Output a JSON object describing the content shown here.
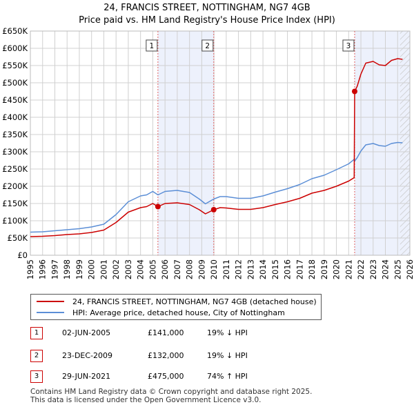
{
  "chart_data": {
    "type": "line",
    "title": "24, FRANCIS STREET, NOTTINGHAM, NG7 4GB",
    "subtitle": "Price paid vs. HM Land Registry's House Price Index (HPI)",
    "xlim": [
      1995,
      2026
    ],
    "ylim": [
      0,
      650000
    ],
    "x_ticks": [
      "1995",
      "1996",
      "1997",
      "1998",
      "1999",
      "2000",
      "2001",
      "2002",
      "2003",
      "2004",
      "2005",
      "2006",
      "2007",
      "2008",
      "2009",
      "2010",
      "2011",
      "2012",
      "2013",
      "2014",
      "2015",
      "2016",
      "2017",
      "2018",
      "2019",
      "2020",
      "2021",
      "2022",
      "2023",
      "2024",
      "2025",
      "2026"
    ],
    "y_ticks": [
      {
        "value": 0,
        "label": "£0"
      },
      {
        "value": 50000,
        "label": "£50K"
      },
      {
        "value": 100000,
        "label": "£100K"
      },
      {
        "value": 150000,
        "label": "£150K"
      },
      {
        "value": 200000,
        "label": "£200K"
      },
      {
        "value": 250000,
        "label": "£250K"
      },
      {
        "value": 300000,
        "label": "£300K"
      },
      {
        "value": 350000,
        "label": "£350K"
      },
      {
        "value": 400000,
        "label": "£400K"
      },
      {
        "value": 450000,
        "label": "£450K"
      },
      {
        "value": 500000,
        "label": "£500K"
      },
      {
        "value": 550000,
        "label": "£550K"
      },
      {
        "value": 600000,
        "label": "£600K"
      },
      {
        "value": 650000,
        "label": "£650K"
      }
    ],
    "shaded_ranges": [
      [
        2005.42,
        2009.98
      ],
      [
        2021.49,
        2026
      ]
    ],
    "hatched_from": 2025.2,
    "series": [
      {
        "name": "24, FRANCIS STREET, NOTTINGHAM, NG7 4GB (detached house)",
        "color": "#cc0000",
        "x": [
          1995,
          1996,
          1997,
          1998,
          1999,
          2000,
          2001,
          2002,
          2003,
          2004,
          2004.5,
          2005,
          2005.42,
          2006,
          2007,
          2008,
          2008.8,
          2009.3,
          2009.98,
          2010.5,
          2011,
          2012,
          2013,
          2014,
          2015,
          2016,
          2017,
          2018,
          2019,
          2020,
          2021,
          2021.45,
          2021.49,
          2021.7,
          2022,
          2022.4,
          2023,
          2023.5,
          2024,
          2024.5,
          2025,
          2025.4
        ],
        "values": [
          54000,
          55000,
          57000,
          60000,
          62000,
          66000,
          73000,
          95000,
          125000,
          138000,
          141000,
          150000,
          141000,
          150000,
          152000,
          147000,
          132000,
          120000,
          132000,
          138000,
          137000,
          133000,
          133000,
          138000,
          147000,
          155000,
          165000,
          180000,
          188000,
          200000,
          215000,
          225000,
          475000,
          490000,
          525000,
          557000,
          562000,
          552000,
          550000,
          565000,
          570000,
          568000
        ]
      },
      {
        "name": "HPI: Average price, detached house, City of Nottingham",
        "color": "#5b8ed6",
        "x": [
          1995,
          1996,
          1997,
          1998,
          1999,
          2000,
          2001,
          2002,
          2003,
          2004,
          2004.5,
          2005,
          2005.42,
          2006,
          2007,
          2008,
          2008.8,
          2009.3,
          2009.98,
          2010.5,
          2011,
          2012,
          2013,
          2014,
          2015,
          2016,
          2017,
          2018,
          2019,
          2020,
          2021,
          2021.45,
          2021.49,
          2021.7,
          2022,
          2022.4,
          2023,
          2023.5,
          2024,
          2024.5,
          2025,
          2025.4
        ],
        "values": [
          67000,
          68000,
          71000,
          74000,
          77000,
          82000,
          90000,
          118000,
          155000,
          172000,
          175000,
          185000,
          175000,
          185000,
          188000,
          182000,
          163000,
          149000,
          163000,
          170000,
          170000,
          165000,
          165000,
          172000,
          183000,
          193000,
          205000,
          222000,
          232000,
          248000,
          265000,
          278000,
          273000,
          283000,
          302000,
          320000,
          324000,
          318000,
          316000,
          324000,
          327000,
          326000
        ]
      }
    ],
    "transactions": [
      {
        "label": "1",
        "date": "02-JUN-2005",
        "x": 2005.42,
        "price": 141000,
        "price_text": "£141,000",
        "hpi_text": "19% ↓ HPI"
      },
      {
        "label": "2",
        "date": "23-DEC-2009",
        "x": 2009.98,
        "price": 132000,
        "price_text": "£132,000",
        "hpi_text": "19% ↓ HPI"
      },
      {
        "label": "3",
        "date": "29-JUN-2021",
        "x": 2021.49,
        "price": 475000,
        "price_text": "£475,000",
        "hpi_text": "74% ↑ HPI"
      }
    ]
  },
  "legend": {
    "property_label": "24, FRANCIS STREET, NOTTINGHAM, NG7 4GB (detached house)",
    "hpi_label": "HPI: Average price, detached house, City of Nottingham"
  },
  "footer": {
    "line1": "Contains HM Land Registry data © Crown copyright and database right 2025.",
    "line2": "This data is licensed under the Open Government Licence v3.0."
  }
}
